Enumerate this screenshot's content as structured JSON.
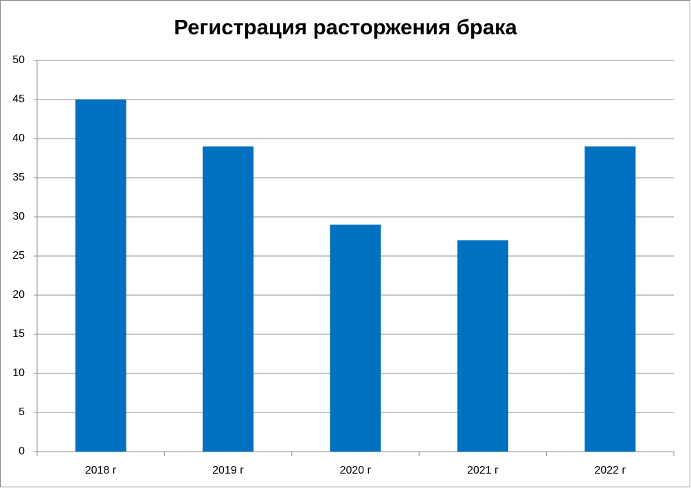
{
  "chart_data": {
    "type": "bar",
    "title": "Регистрация расторжения брака",
    "categories": [
      "2018 г",
      "2019 г",
      "2020 г",
      "2021 г",
      "2022 г"
    ],
    "values": [
      45,
      39,
      29,
      27,
      39
    ],
    "color": "#0070c0",
    "ylim": [
      0,
      50
    ],
    "yticks": [
      0,
      5,
      10,
      15,
      20,
      25,
      30,
      35,
      40,
      45,
      50
    ],
    "grid": true
  }
}
